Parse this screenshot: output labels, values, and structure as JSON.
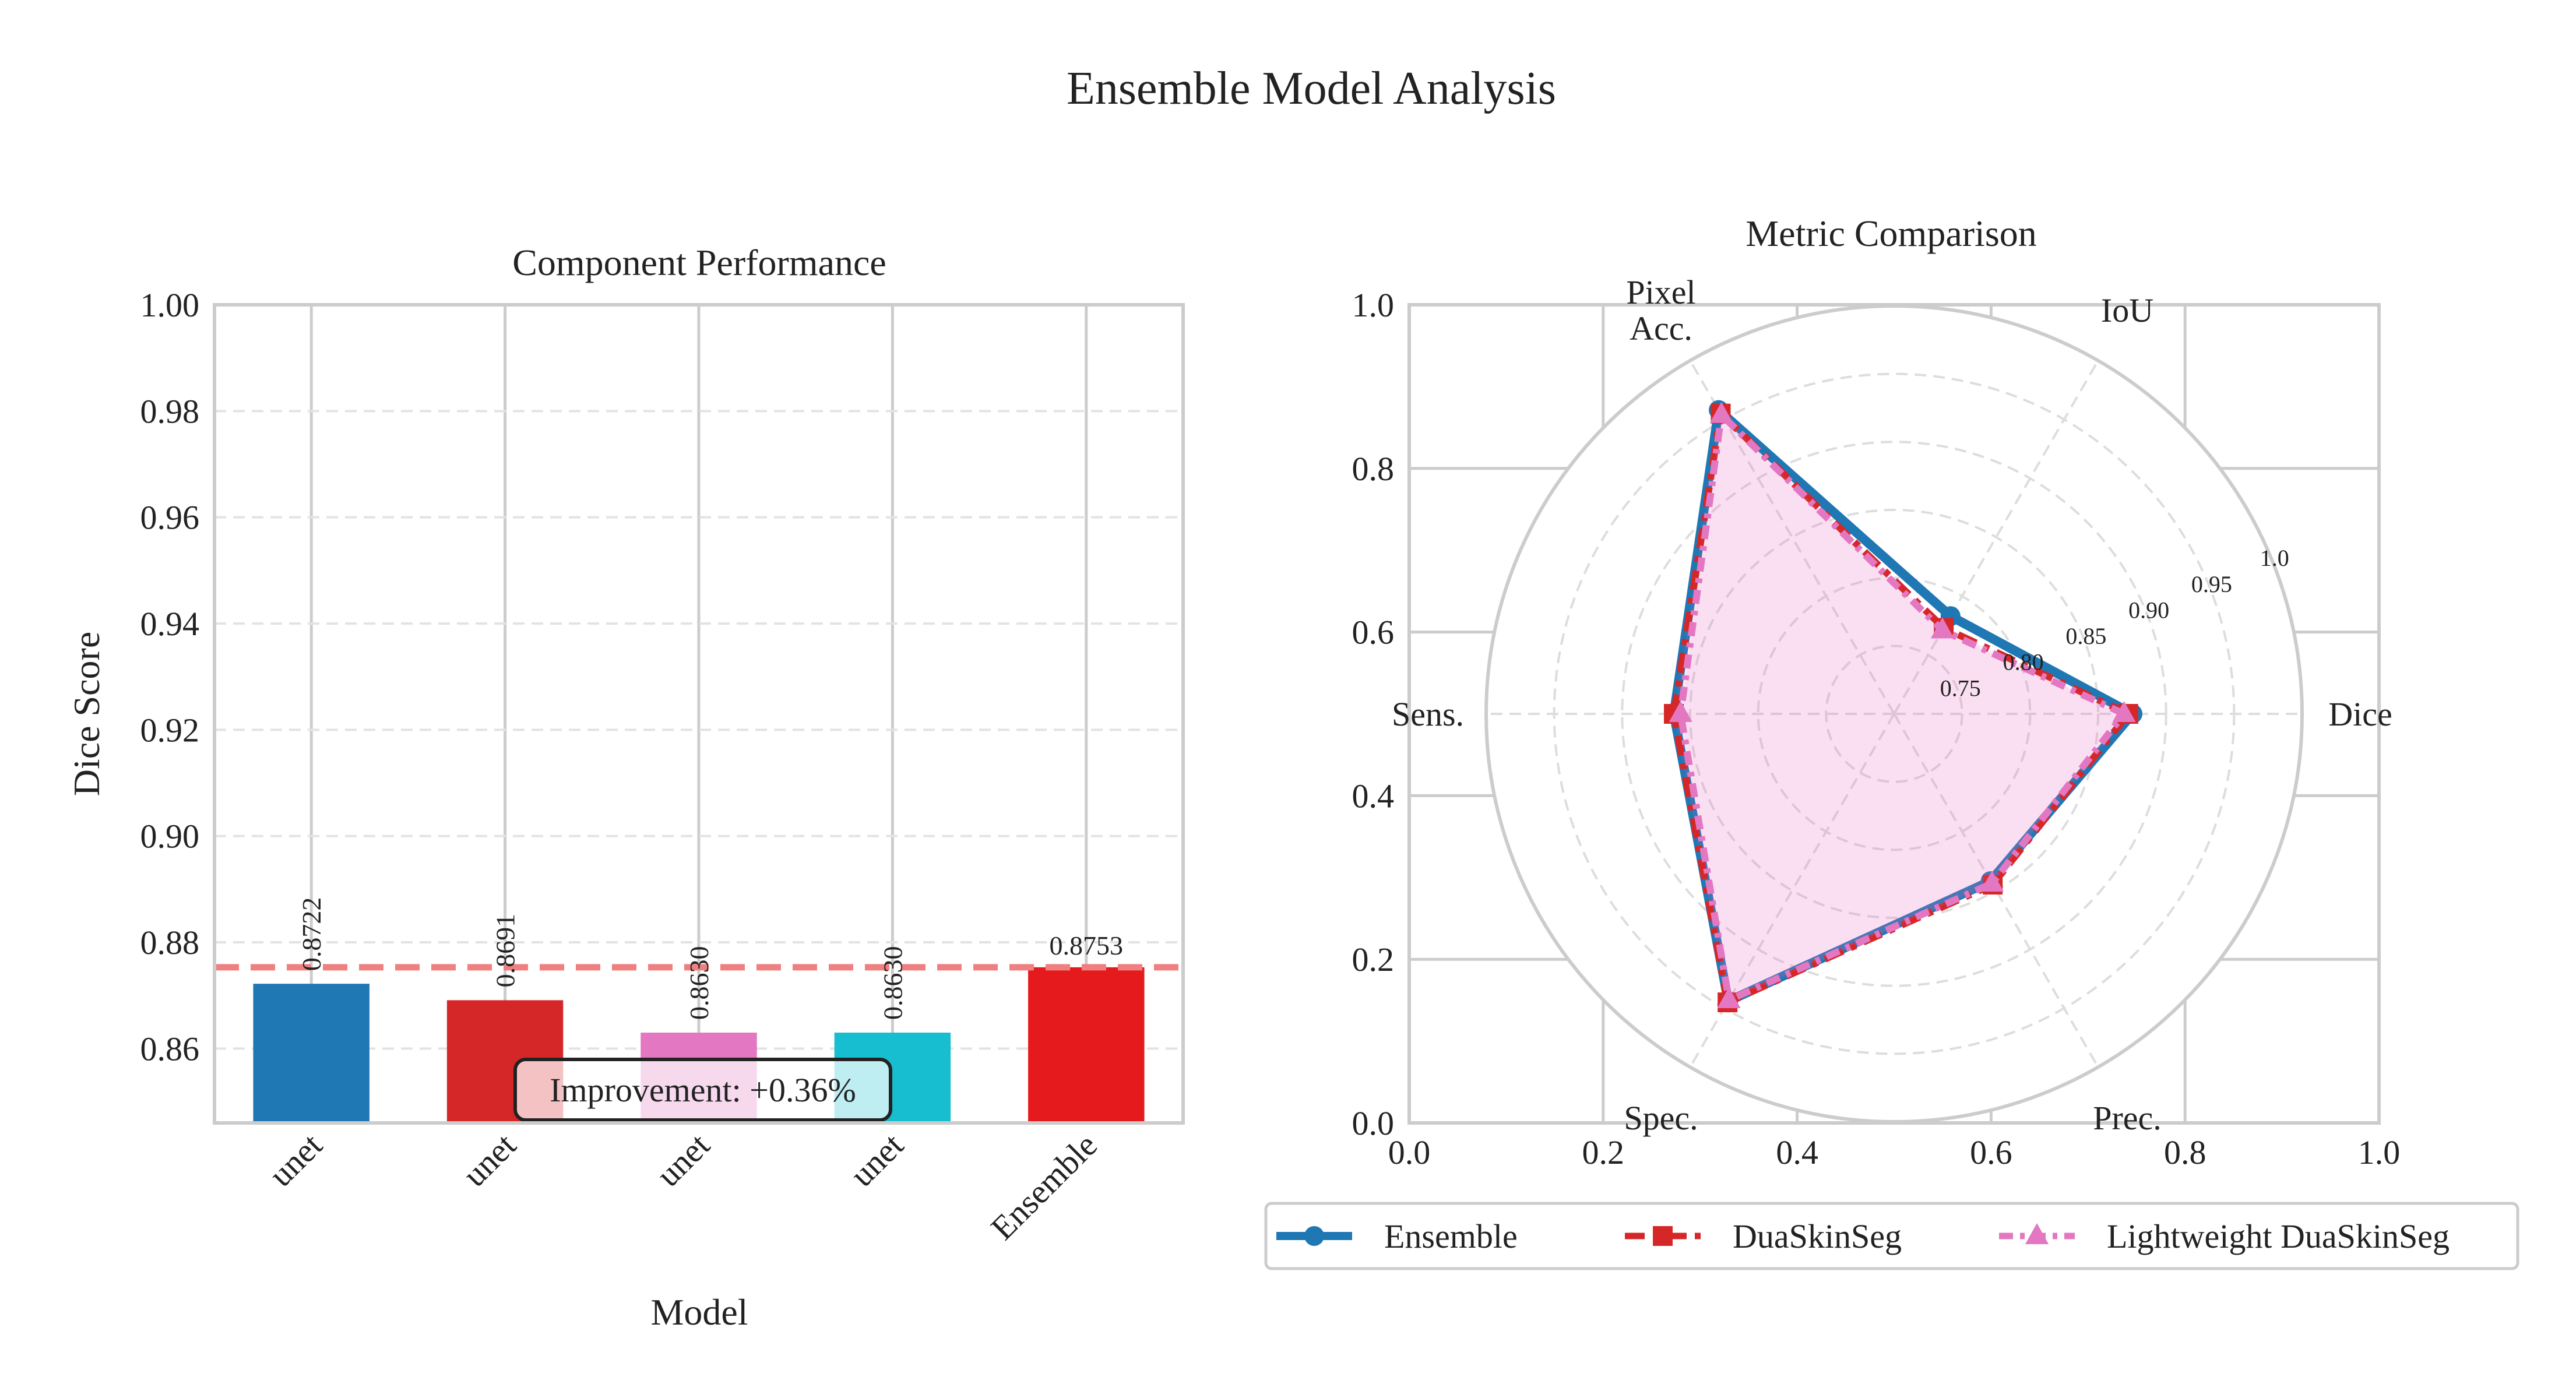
{
  "suptitle": "Ensemble Model Analysis",
  "chart_data": [
    {
      "type": "bar",
      "title": "Component Performance",
      "xlabel": "Model",
      "ylabel": "Dice Score",
      "categories": [
        "unet",
        "unet",
        "unet",
        "unet",
        "Ensemble"
      ],
      "values": [
        0.8722,
        0.8691,
        0.863,
        0.863,
        0.8753
      ],
      "value_labels": [
        "0.8722",
        "0.8691",
        "0.8630",
        "0.8630",
        "0.8753"
      ],
      "colors": [
        "#1f77b4",
        "#d62728",
        "#e377c2",
        "#17becf",
        "#e41a1c"
      ],
      "ylim": [
        0.846,
        1.0
      ],
      "yticks": [
        "0.86",
        "0.88",
        "0.90",
        "0.92",
        "0.94",
        "0.96",
        "0.98",
        "1.00"
      ],
      "reference_line": {
        "value": 0.8753,
        "color": "#f08080",
        "style": "dashed"
      },
      "annotation": "Improvement: +0.36%",
      "grid": true
    },
    {
      "type": "radar",
      "title": "Metric Comparison",
      "axes": [
        "Dice",
        "IoU",
        "Pixel\nAcc.",
        "Sens.",
        "Spec.",
        "Prec."
      ],
      "axis_labels": [
        [
          "Dice"
        ],
        [
          "IoU"
        ],
        [
          "Pixel",
          "Acc."
        ],
        [
          "Sens."
        ],
        [
          "Spec."
        ],
        [
          "Prec."
        ]
      ],
      "rlim": [
        0.7,
        1.0
      ],
      "rticks": [
        "0.75",
        "0.80",
        "0.85",
        "0.90",
        "0.95",
        "1.0"
      ],
      "outer_xticks": [
        "0.0",
        "0.2",
        "0.4",
        "0.6",
        "0.8",
        "1.0"
      ],
      "outer_yticks": [
        "0.0",
        "0.2",
        "0.4",
        "0.6",
        "0.8",
        "1.0"
      ],
      "series": [
        {
          "name": "Ensemble",
          "color": "#1f77b4",
          "marker": "circle",
          "values": [
            0.8753,
            0.783,
            0.958,
            0.862,
            0.944,
            0.842
          ]
        },
        {
          "name": "DuaSkinSeg",
          "color": "#d62728",
          "marker": "square",
          "values": [
            0.8722,
            0.773,
            0.955,
            0.862,
            0.945,
            0.845
          ]
        },
        {
          "name": "Lightweight DuaSkinSeg",
          "color": "#e377c2",
          "marker": "triangle",
          "values": [
            0.8691,
            0.771,
            0.954,
            0.857,
            0.943,
            0.844
          ]
        }
      ],
      "legend_position": "bottom"
    }
  ]
}
